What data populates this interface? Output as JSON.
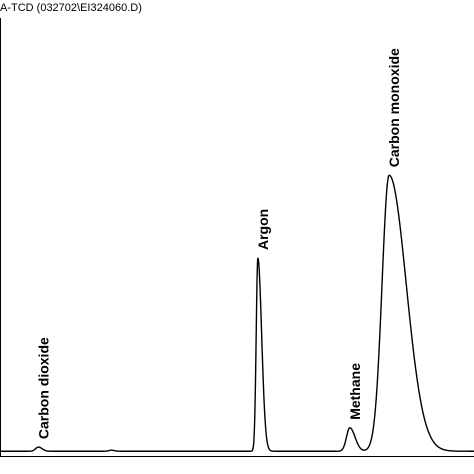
{
  "chart_data": {
    "type": "line",
    "title": "A-TCD (032702\\EI324060.D)",
    "xlabel": "",
    "ylabel": "",
    "x_range": [
      0,
      100
    ],
    "y_range": [
      0,
      100
    ],
    "grid": false,
    "legend": "none",
    "line_color": "#000000",
    "baseline": 1,
    "peaks": [
      {
        "label": "Carbon dioxide",
        "x": 8.1,
        "height": 1.5,
        "sigma_left": 0.6,
        "sigma_right": 0.8
      },
      {
        "label": "",
        "x": 23.5,
        "height": 0.4,
        "sigma_left": 0.5,
        "sigma_right": 0.6
      },
      {
        "label": "Argon",
        "x": 54.4,
        "height": 70,
        "sigma_left": 0.35,
        "sigma_right": 0.8
      },
      {
        "label": "Methane",
        "x": 73.8,
        "height": 8.5,
        "sigma_left": 0.7,
        "sigma_right": 1.1
      },
      {
        "label": "Carbon monoxide",
        "x": 82.1,
        "height": 100,
        "sigma_left": 1.5,
        "sigma_right": 3.6
      }
    ]
  }
}
